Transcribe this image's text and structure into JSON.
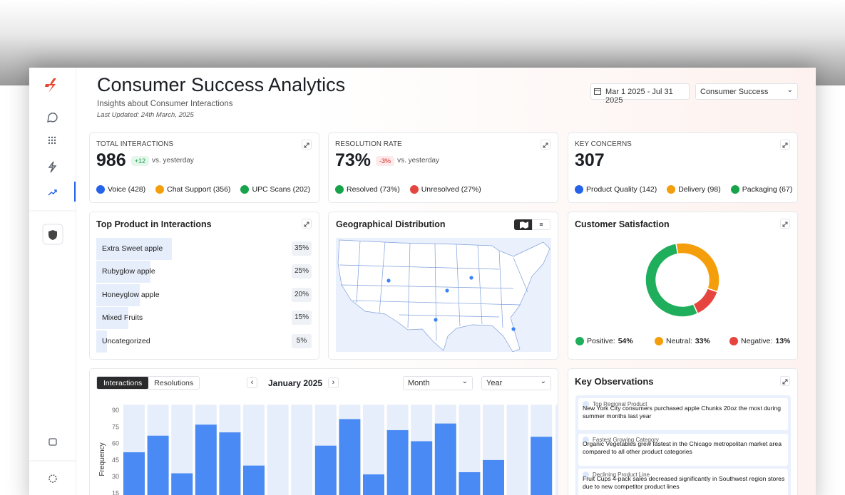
{
  "header": {
    "title": "Consumer Success Analytics",
    "subtitle": "Insights about Consumer Interactions",
    "updated": "Last Updated: 24th March, 2025",
    "date_range": "Mar 1 2025 - Jul 31 2025",
    "team": "Consumer Success"
  },
  "kpis": [
    {
      "label": "TOTAL INTERACTIONS",
      "value": "986",
      "delta": "+12",
      "delta_note": "vs. yesterday",
      "items": [
        "Voice (428)",
        "Chat Support (356)",
        "UPC Scans (202)"
      ]
    },
    {
      "label": "RESOLUTION RATE",
      "value": "73%",
      "delta": "-3%",
      "delta_note": "vs. yesterday",
      "items": [
        "Resolved (73%)",
        "Unresolved (27%)"
      ]
    },
    {
      "label": "KEY CONCERNS",
      "value": "307",
      "items": [
        "Product Quality (142)",
        "Delivery (98)",
        "Packaging (67)"
      ]
    }
  ],
  "top_products": {
    "type": "bar",
    "title": "Top Product in Interactions",
    "categories": [
      "Extra Sweet apple",
      "Rubyglow apple",
      "Honeyglow apple",
      "Mixed Fruits",
      "Uncategorized"
    ],
    "values": [
      35,
      25,
      20,
      15,
      5
    ],
    "value_labels": [
      "35%",
      "25%",
      "20%",
      "15%",
      "5%"
    ],
    "color": "#e6eefc"
  },
  "geo": {
    "title": "Geographical Distribution"
  },
  "satisfaction": {
    "type": "pie",
    "title": "Customer Satisfaction",
    "categories": [
      "Positive:",
      "Neutral:",
      "Negative:"
    ],
    "values": [
      54,
      33,
      13
    ],
    "value_labels": [
      "54%",
      "33%",
      "13%"
    ],
    "colors": [
      "#1fae5b",
      "#f59e0b",
      "#e5443f"
    ]
  },
  "frequency": {
    "type": "bar",
    "tabs": [
      "Interactions",
      "Resolutions"
    ],
    "period": "January 2025",
    "selects": [
      "Month",
      "Year"
    ],
    "ylabel": "Frequency",
    "values": [
      52,
      67,
      33,
      77,
      70,
      40,
      0,
      0,
      58,
      82,
      32,
      72,
      62,
      78,
      34,
      45,
      0,
      66
    ],
    "color": "#4a8af4",
    "ylim": [
      0,
      95
    ],
    "yticks": [
      15,
      30,
      45,
      60,
      75,
      90
    ]
  },
  "observations": {
    "title": "Key Observations",
    "items": [
      {
        "tag": "Top Regional Product",
        "text": "New York City consumers purchased apple Chunks 20oz the most during summer months last year"
      },
      {
        "tag": "Fastest Growing Category",
        "text": "Organic Vegetables grew fastest in the Chicago metropolitan market area compared to all other product categories"
      },
      {
        "tag": "Declining Product Line",
        "text": "Fruit Cups 4-pack sales decreased significantly in Southwest region stores due to new competitor product lines"
      }
    ]
  }
}
